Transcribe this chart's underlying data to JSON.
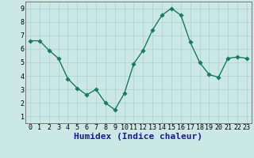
{
  "x": [
    0,
    1,
    2,
    3,
    4,
    5,
    6,
    7,
    8,
    9,
    10,
    11,
    12,
    13,
    14,
    15,
    16,
    17,
    18,
    19,
    20,
    21,
    22,
    23
  ],
  "y": [
    6.6,
    6.6,
    5.9,
    5.3,
    3.8,
    3.1,
    2.6,
    3.0,
    2.0,
    1.5,
    2.7,
    4.9,
    5.9,
    7.4,
    8.5,
    9.0,
    8.5,
    6.5,
    5.0,
    4.1,
    3.9,
    5.3,
    5.4,
    5.3
  ],
  "line_color": "#1a7a5e",
  "marker_color": "#1a7a5e",
  "bg_color": "#cce8e6",
  "grid_color": "#aad4d2",
  "xlabel": "Humidex (Indice chaleur)",
  "xlabel_color": "#1a1a8c",
  "xlim": [
    -0.5,
    23.5
  ],
  "ylim": [
    0.5,
    9.5
  ],
  "yticks": [
    1,
    2,
    3,
    4,
    5,
    6,
    7,
    8,
    9
  ],
  "xticks": [
    0,
    1,
    2,
    3,
    4,
    5,
    6,
    7,
    8,
    9,
    10,
    11,
    12,
    13,
    14,
    15,
    16,
    17,
    18,
    19,
    20,
    21,
    22,
    23
  ],
  "xtick_labels": [
    "0",
    "1",
    "2",
    "3",
    "4",
    "5",
    "6",
    "7",
    "8",
    "9",
    "10",
    "11",
    "12",
    "13",
    "14",
    "15",
    "16",
    "17",
    "18",
    "19",
    "20",
    "21",
    "22",
    "23"
  ],
  "tick_fontsize": 6,
  "xlabel_fontsize": 8,
  "linewidth": 1.0,
  "markersize": 2.8
}
